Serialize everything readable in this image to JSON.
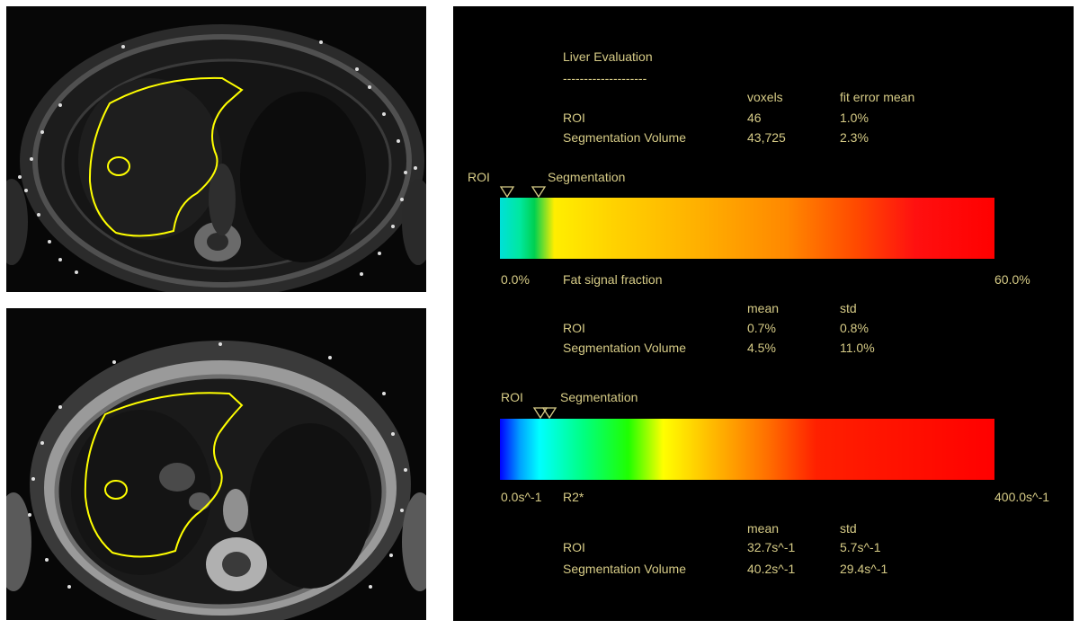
{
  "report": {
    "title": "Liver Evaluation",
    "separator": "--------------------",
    "volume_table": {
      "col_voxels": "voxels",
      "col_fit_error": "fit error mean",
      "rows": [
        {
          "label": "ROI",
          "voxels": "46",
          "fit_error": "1.0%"
        },
        {
          "label": "Segmentation Volume",
          "voxels": "43,725",
          "fit_error": "2.3%"
        }
      ]
    },
    "fat": {
      "marker_roi": "ROI",
      "marker_seg": "Segmentation",
      "min_label": "0.0%",
      "name": "Fat signal fraction",
      "max_label": "60.0%",
      "col_mean": "mean",
      "col_std": "std",
      "rows": [
        {
          "label": "ROI",
          "mean": "0.7%",
          "std": "0.8%"
        },
        {
          "label": "Segmentation Volume",
          "mean": "4.5%",
          "std": "11.0%"
        }
      ]
    },
    "r2": {
      "marker_roi": "ROI",
      "marker_seg": "Segmentation",
      "min_label": "0.0s^-1",
      "name": "R2*",
      "max_label": "400.0s^-1",
      "col_mean": "mean",
      "col_std": "std",
      "rows": [
        {
          "label": "ROI",
          "mean": "32.7s^-1",
          "std": "5.7s^-1"
        },
        {
          "label": "Segmentation Volume",
          "mean": "40.2s^-1",
          "std": "29.4s^-1"
        }
      ]
    }
  },
  "colors": {
    "text": "#d6cb86",
    "contour": "#ffff00",
    "report_bg": "#000000"
  }
}
